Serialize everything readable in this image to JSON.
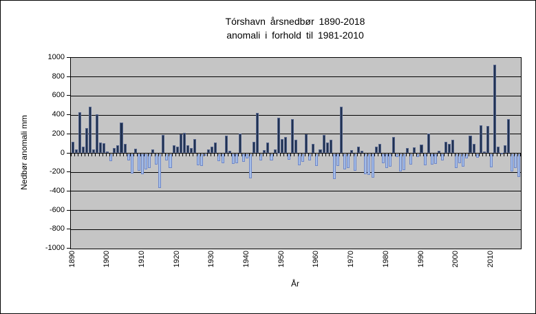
{
  "chart_data": {
    "type": "bar",
    "title_line1": "Tórshavn årsnedbør 1890-2018",
    "title_line2": "anomali i forhold til 1981-2010",
    "xlabel": "År",
    "ylabel": "Nedbør anomali mm",
    "x_start_year": 1890,
    "x_end_year": 2018,
    "x_tick_labels": [
      "1890",
      "1900",
      "1910",
      "1920",
      "1930",
      "1940",
      "1950",
      "1960",
      "1970",
      "1980",
      "1990",
      "2000",
      "2010"
    ],
    "y_ticks": [
      1000,
      800,
      600,
      400,
      200,
      0,
      -200,
      -400,
      -600,
      -800,
      -1000
    ],
    "ylim": [
      -1000,
      1000
    ],
    "grid": "horizontal",
    "legend_position": "none",
    "series": [
      {
        "name": "Nedbør anomali mm",
        "values": [
          120,
          40,
          430,
          70,
          260,
          490,
          40,
          405,
          115,
          105,
          20,
          -75,
          55,
          85,
          320,
          100,
          -65,
          -205,
          50,
          -175,
          -210,
          -160,
          -150,
          40,
          -110,
          -355,
          190,
          -65,
          -150,
          85,
          65,
          200,
          215,
          80,
          55,
          150,
          -120,
          -125,
          -20,
          40,
          65,
          110,
          -75,
          -95,
          185,
          25,
          -105,
          -100,
          205,
          -85,
          -50,
          -255,
          120,
          420,
          -70,
          35,
          110,
          -65,
          40,
          375,
          150,
          170,
          -60,
          360,
          140,
          -120,
          -80,
          200,
          -70,
          100,
          -125,
          40,
          190,
          115,
          140,
          -260,
          -125,
          490,
          -160,
          -150,
          30,
          -175,
          70,
          25,
          -210,
          -220,
          -250,
          70,
          95,
          -95,
          -145,
          -135,
          170,
          -35,
          -185,
          -170,
          55,
          -110,
          60,
          -35,
          90,
          -120,
          205,
          -115,
          -105,
          25,
          -65,
          120,
          100,
          140,
          -145,
          -100,
          -130,
          -50,
          185,
          95,
          -40,
          290,
          15,
          285,
          -140,
          930,
          65,
          5,
          85,
          360,
          -185,
          -150,
          -245
        ]
      }
    ],
    "colors": {
      "positive_fill": "#1f3150",
      "positive_border": "#55648c",
      "negative_fill": "#a5bee8",
      "negative_border": "#6f87c8",
      "plot_background": "#c5c5c5",
      "gridline": "#000000",
      "figure_background": "#ffffff"
    }
  }
}
